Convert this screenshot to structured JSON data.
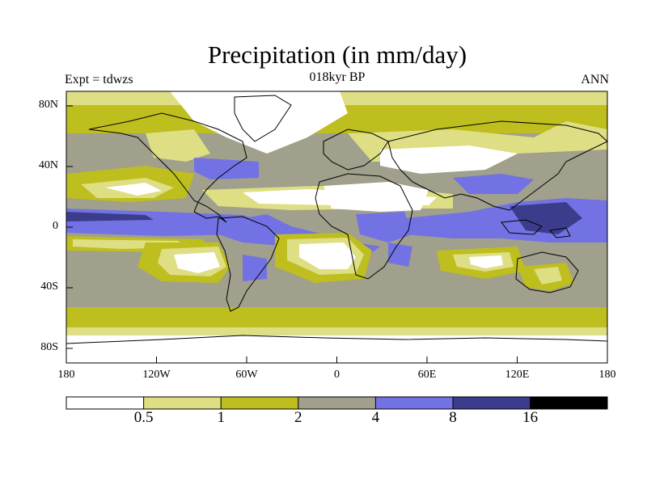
{
  "title": "Precipitation (in mm/day)",
  "left_string": "Expt = tdwzs",
  "center_string": "018kyr BP",
  "right_string": "ANN",
  "y_tick_labels": [
    "80N",
    "40N",
    "0",
    "40S",
    "80S"
  ],
  "x_tick_labels": [
    "180",
    "120W",
    "60W",
    "0",
    "60E",
    "120E",
    "180"
  ],
  "colorbar": {
    "labels": [
      "0.5",
      "1",
      "2",
      "4",
      "8",
      "16"
    ],
    "colors": [
      "#ffffff",
      "#dede84",
      "#bebe1e",
      "#a0a08c",
      "#7272e4",
      "#3c3c8c",
      "#000000"
    ]
  },
  "chart_data": {
    "type": "heatmap",
    "title": "Precipitation (in mm/day)",
    "subtitle": "018kyr BP",
    "xlabel": "",
    "ylabel": "",
    "xlim": [
      -180,
      180
    ],
    "ylim": [
      -90,
      90
    ],
    "y_ticks": [
      80,
      40,
      0,
      -40,
      -80
    ],
    "x_ticks": [
      -180,
      -120,
      -60,
      0,
      60,
      120,
      180
    ],
    "levels": [
      0.5,
      1,
      2,
      4,
      8,
      16
    ],
    "grid": false
  }
}
